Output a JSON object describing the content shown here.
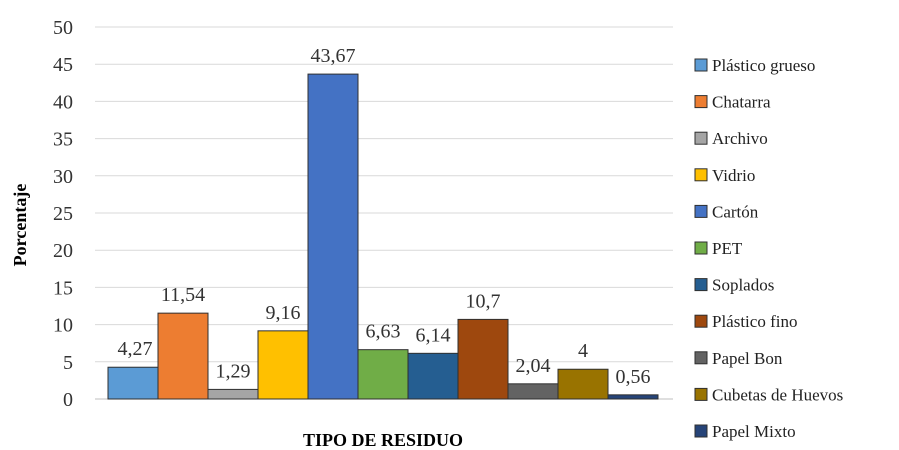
{
  "chart_data": {
    "type": "bar",
    "xlabel": "TIPO DE RESIDUO",
    "ylabel": "Porcentaje",
    "ylim": [
      0,
      50
    ],
    "yticks": [
      "0",
      "5",
      "10",
      "15",
      "20",
      "25",
      "30",
      "35",
      "40",
      "45",
      "50"
    ],
    "grid": true,
    "legend_position": "right",
    "categories": [
      "Plástico grueso",
      "Chatarra",
      "Archivo",
      "Vidrio",
      "Cartón",
      "PET",
      "Soplados",
      "Plástico fino",
      "Papel Bon",
      "Cubetas de Huevos",
      "Papel Mixto"
    ],
    "values": [
      4.27,
      11.54,
      1.29,
      9.16,
      43.67,
      6.63,
      6.14,
      10.7,
      2.04,
      4,
      0.56
    ],
    "value_labels": [
      "4,27",
      "11,54",
      "1,29",
      "9,16",
      "43,67",
      "6,63",
      "6,14",
      "10,7",
      "2,04",
      "4",
      "0,56"
    ],
    "colors": [
      "#5b9bd5",
      "#ed7d31",
      "#a5a5a5",
      "#ffc000",
      "#4472c4",
      "#70ad47",
      "#255e91",
      "#9e480e",
      "#636363",
      "#997300",
      "#264478"
    ]
  }
}
